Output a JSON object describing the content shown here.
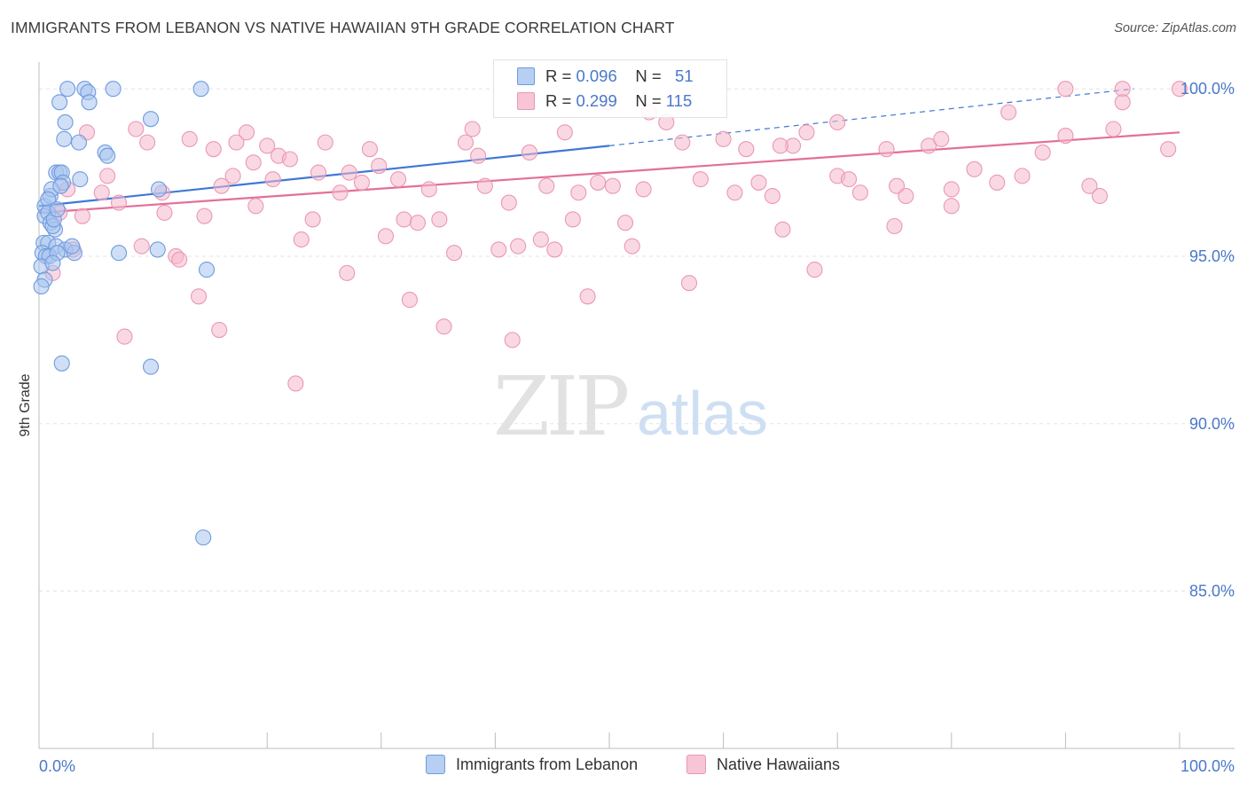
{
  "title": "IMMIGRANTS FROM LEBANON VS NATIVE HAWAIIAN 9TH GRADE CORRELATION CHART",
  "source": "Source: ZipAtlas.com",
  "watermark": {
    "zip": "ZIP",
    "atlas": "atlas"
  },
  "legend": {
    "rows": [
      {
        "r_label": "R =",
        "r_value": "0.096",
        "n_label": "N =",
        "n_value": "51"
      },
      {
        "r_label": "R =",
        "r_value": "0.299",
        "n_label": "N =",
        "n_value": "115"
      }
    ]
  },
  "bottom_legend": [
    "Immigrants from Lebanon",
    "Native Hawaiians"
  ],
  "colors": {
    "blue_fill": "#a9c4ef",
    "blue_stroke": "#6e9bdf",
    "blue_line": "#3f78d6",
    "pink_fill": "#f5b8cc",
    "pink_stroke": "#ea98b3",
    "pink_line": "#e36f98",
    "axis_text": "#4a78c9"
  },
  "chart_data": {
    "type": "scatter",
    "title": "IMMIGRANTS FROM LEBANON VS NATIVE HAWAIIAN 9TH GRADE CORRELATION CHART",
    "xlabel": "",
    "ylabel": "9th Grade",
    "xlim": [
      0,
      100
    ],
    "ylim": [
      80.3,
      100.8
    ],
    "x_tick_labels": [
      "0.0%",
      "100.0%"
    ],
    "y_ticks": [
      85,
      90,
      95,
      100
    ],
    "y_tick_labels": [
      "85.0%",
      "90.0%",
      "95.0%",
      "100.0%"
    ],
    "grid": true,
    "legend_position": "top-center",
    "series": [
      {
        "name": "Immigrants from Lebanon",
        "color": "#a9c4ef",
        "x": [
          2.5,
          4.0,
          4.3,
          6.5,
          14.2,
          1.8,
          4.4,
          2.3,
          9.8,
          2.2,
          3.5,
          5.8,
          1.5,
          1.8,
          2.0,
          2.1,
          0.5,
          1.0,
          1.1,
          0.8,
          0.5,
          0.8,
          1.0,
          1.4,
          1.2,
          0.4,
          0.8,
          1.5,
          2.3,
          3.1,
          0.3,
          0.6,
          0.9,
          1.6,
          0.2,
          1.2,
          10.4,
          14.7,
          0.5,
          0.2,
          2.0,
          9.8,
          1.9,
          14.4,
          6.0,
          10.5,
          7.0,
          2.9,
          1.3,
          1.6,
          3.6
        ],
        "y": [
          100.0,
          100.0,
          99.9,
          100.0,
          100.0,
          99.6,
          99.6,
          99.0,
          99.1,
          98.5,
          98.4,
          98.1,
          97.5,
          97.5,
          97.5,
          97.2,
          96.5,
          96.8,
          97.0,
          96.7,
          96.2,
          96.3,
          96.0,
          95.8,
          95.9,
          95.4,
          95.4,
          95.3,
          95.2,
          95.1,
          95.1,
          95.0,
          95.0,
          95.1,
          94.7,
          94.8,
          95.2,
          94.6,
          94.3,
          94.1,
          91.8,
          91.7,
          97.1,
          86.6,
          98.0,
          97.0,
          95.1,
          95.3,
          96.1,
          96.4,
          97.3
        ]
      },
      {
        "name": "Native Hawaiians",
        "color": "#f5b8cc",
        "x": [
          1.2,
          3.0,
          3.8,
          5.5,
          7.0,
          8.5,
          9.5,
          11.0,
          12.0,
          13.2,
          14.5,
          15.3,
          16.0,
          17.3,
          18.2,
          19.0,
          20.0,
          21.0,
          22.0,
          23.0,
          24.0,
          25.1,
          26.4,
          27.2,
          28.3,
          29.0,
          30.4,
          31.5,
          32.0,
          33.2,
          34.2,
          35.1,
          36.4,
          37.4,
          38.0,
          39.1,
          40.3,
          41.2,
          42.0,
          43.0,
          44.5,
          45.2,
          46.1,
          47.3,
          48.1,
          49.0,
          50.3,
          51.4,
          52.0,
          53.5,
          55.0,
          56.4,
          58.0,
          61.0,
          62.0,
          63.1,
          64.3,
          65.2,
          66.1,
          67.3,
          68.0,
          70.0,
          71.0,
          72.0,
          74.3,
          75.2,
          76.0,
          78.0,
          79.1,
          80.0,
          82.0,
          84.0,
          86.2,
          88.0,
          90.0,
          92.1,
          93.0,
          94.2,
          95.0,
          99.0,
          100.0,
          1.8,
          2.5,
          4.2,
          6.0,
          7.5,
          9.0,
          10.8,
          12.3,
          14.0,
          15.8,
          17.0,
          18.8,
          20.5,
          22.5,
          24.5,
          27.0,
          29.8,
          32.5,
          35.5,
          38.5,
          41.5,
          44.0,
          46.8,
          50.0,
          53.0,
          57.0,
          60.0,
          65.0,
          70.0,
          75.0,
          80.0,
          85.0,
          90.0,
          95.0
        ],
        "y": [
          94.5,
          95.2,
          96.2,
          96.9,
          96.6,
          98.8,
          98.4,
          96.3,
          95.0,
          98.5,
          96.2,
          98.2,
          97.1,
          98.4,
          98.7,
          96.5,
          98.3,
          98.0,
          97.9,
          95.5,
          96.1,
          98.4,
          96.9,
          97.5,
          97.2,
          98.2,
          95.6,
          97.3,
          96.1,
          96.0,
          97.0,
          96.1,
          95.1,
          98.4,
          98.8,
          97.1,
          95.2,
          96.6,
          95.3,
          98.1,
          97.1,
          95.2,
          98.7,
          96.9,
          93.8,
          97.2,
          97.1,
          96.0,
          95.3,
          99.3,
          99.0,
          98.4,
          97.3,
          96.9,
          98.2,
          97.2,
          96.8,
          95.8,
          98.3,
          98.7,
          94.6,
          97.4,
          97.3,
          96.9,
          98.2,
          97.1,
          96.8,
          98.3,
          98.5,
          96.5,
          97.6,
          97.2,
          97.4,
          98.1,
          100.0,
          97.1,
          96.8,
          98.8,
          100.0,
          98.2,
          100.0,
          96.3,
          97.0,
          98.7,
          97.4,
          92.6,
          95.3,
          96.9,
          94.9,
          93.8,
          92.8,
          97.4,
          97.8,
          97.3,
          91.2,
          97.5,
          94.5,
          97.7,
          93.7,
          92.9,
          98.0,
          92.5,
          95.5,
          96.1,
          99.6,
          97.0,
          94.2,
          98.5,
          98.3,
          99.0,
          95.9,
          97.0,
          99.3,
          98.6,
          99.6
        ]
      }
    ],
    "trend_lines": [
      {
        "series": "Immigrants from Lebanon",
        "x": [
          0,
          50,
          96
        ],
        "y": [
          96.5,
          98.3,
          100.0
        ],
        "dashed_after_x": 50
      },
      {
        "series": "Native Hawaiians",
        "x": [
          0,
          100
        ],
        "y": [
          96.3,
          98.7
        ]
      }
    ]
  }
}
